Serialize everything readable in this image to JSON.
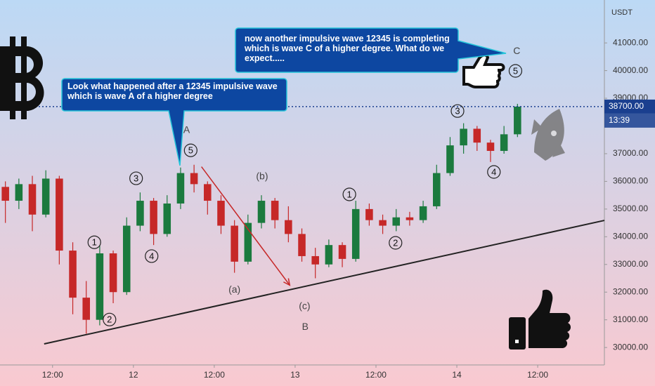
{
  "chart_data": {
    "type": "candlestick",
    "currency": "USDT",
    "x": [
      5,
      7,
      9,
      11,
      13,
      15,
      17,
      19,
      21,
      23,
      25,
      27,
      29,
      31,
      33,
      35,
      37,
      39,
      41,
      43,
      45,
      47,
      49,
      51,
      53,
      55,
      57,
      59,
      61,
      63,
      65,
      67,
      69,
      71,
      73,
      75,
      77,
      79,
      81
    ],
    "open": [
      35800,
      35300,
      35900,
      34800,
      36100,
      33500,
      31800,
      31000,
      33400,
      32000,
      34400,
      35300,
      34100,
      35200,
      36300,
      35900,
      35300,
      34400,
      33100,
      34500,
      35300,
      34600,
      34100,
      33300,
      33000,
      33700,
      33200,
      35000,
      34600,
      34400,
      34700,
      34600,
      35100,
      36300,
      37300,
      37900,
      37400,
      37100,
      37700
    ],
    "high": [
      36000,
      36100,
      36200,
      36400,
      36200,
      33800,
      32400,
      33700,
      33500,
      34700,
      35600,
      35400,
      35500,
      36500,
      36600,
      36000,
      35500,
      34600,
      34800,
      35500,
      35400,
      35100,
      34300,
      33600,
      33900,
      33800,
      35300,
      35200,
      34800,
      35000,
      34900,
      35300,
      36600,
      37600,
      38100,
      38000,
      37500,
      38000,
      38800
    ],
    "low": [
      34500,
      35000,
      34200,
      34700,
      33000,
      31200,
      30500,
      30800,
      31600,
      31900,
      34200,
      33700,
      34000,
      35000,
      35600,
      34800,
      34100,
      32700,
      33000,
      34300,
      34300,
      33800,
      33100,
      32500,
      32900,
      32900,
      33100,
      34400,
      34100,
      34200,
      34400,
      34500,
      35000,
      36200,
      37000,
      37100,
      36700,
      37000,
      37600
    ],
    "close": [
      35300,
      35900,
      34800,
      36100,
      33500,
      31800,
      31000,
      33400,
      32000,
      34400,
      35300,
      34100,
      35200,
      36300,
      35900,
      35300,
      34400,
      33100,
      34500,
      35300,
      34600,
      34100,
      33300,
      33000,
      33700,
      33200,
      35000,
      34600,
      34400,
      34700,
      34600,
      35100,
      36300,
      37300,
      37900,
      37400,
      37100,
      37700,
      38700
    ],
    "up_color": "#1b7a3e",
    "down_color": "#c62828",
    "xlim": [
      4.2,
      93.9
    ],
    "ylim": [
      29370,
      42550
    ],
    "xticks": [
      {
        "value": 12,
        "label": "12:00"
      },
      {
        "value": 24,
        "label": "12"
      },
      {
        "value": 36,
        "label": "12:00"
      },
      {
        "value": 48,
        "label": "13"
      },
      {
        "value": 60,
        "label": "12:00"
      },
      {
        "value": 72,
        "label": "14"
      },
      {
        "value": 84,
        "label": "12:00"
      }
    ],
    "yticks": [
      {
        "value": 30000,
        "label": "30000.00"
      },
      {
        "value": 31000,
        "label": "31000.00"
      },
      {
        "value": 32000,
        "label": "32000.00"
      },
      {
        "value": 33000,
        "label": "33000.00"
      },
      {
        "value": 34000,
        "label": "34000.00"
      },
      {
        "value": 35000,
        "label": "35000.00"
      },
      {
        "value": 36000,
        "label": "36000.00"
      },
      {
        "value": 37000,
        "label": "37000.00"
      },
      {
        "value": 39000,
        "label": "39000.00"
      },
      {
        "value": 40000,
        "label": "40000.00"
      },
      {
        "value": 41000,
        "label": "41000.00"
      }
    ],
    "last_price": {
      "value": 38700,
      "label": "38700.00"
    },
    "countdown": "13:39",
    "trendline": {
      "x": [
        10.75,
        93.9
      ],
      "y": [
        30130,
        34590
      ]
    },
    "arrow": {
      "x": [
        34.1,
        47.2
      ],
      "y": [
        36530,
        32250
      ]
    },
    "annotations": [
      {
        "text": "1",
        "circled": true,
        "x": 18.2,
        "y": 33800
      },
      {
        "text": "2",
        "circled": true,
        "x": 20.45,
        "y": 31010
      },
      {
        "text": "3",
        "circled": true,
        "x": 24.4,
        "y": 36110
      },
      {
        "text": "4",
        "circled": true,
        "x": 26.7,
        "y": 33300
      },
      {
        "text": "5",
        "circled": true,
        "x": 32.5,
        "y": 37120
      },
      {
        "text": "A",
        "circled": false,
        "x": 31.9,
        "y": 37860
      },
      {
        "text": "(a)",
        "circled": false,
        "x": 39.0,
        "y": 32100
      },
      {
        "text": "(b)",
        "circled": false,
        "x": 43.1,
        "y": 36190
      },
      {
        "text": "(c)",
        "circled": false,
        "x": 49.4,
        "y": 31500
      },
      {
        "text": "B",
        "circled": false,
        "x": 49.5,
        "y": 30760
      },
      {
        "text": "1",
        "circled": true,
        "x": 56.05,
        "y": 35530
      },
      {
        "text": "2",
        "circled": true,
        "x": 62.9,
        "y": 33780
      },
      {
        "text": "3",
        "circled": true,
        "x": 72.1,
        "y": 38540
      },
      {
        "text": "4",
        "circled": true,
        "x": 77.5,
        "y": 36340
      },
      {
        "text": "5",
        "circled": true,
        "x": 80.7,
        "y": 39990
      },
      {
        "text": "C",
        "circled": false,
        "x": 80.9,
        "y": 40720
      }
    ],
    "callouts": [
      "Look what happened after a 12345 impulsive wave which is wave A of a higher degree",
      "now another impulsive wave 12345 is completing which is wave C of a higher degree. What do we expect....."
    ]
  }
}
